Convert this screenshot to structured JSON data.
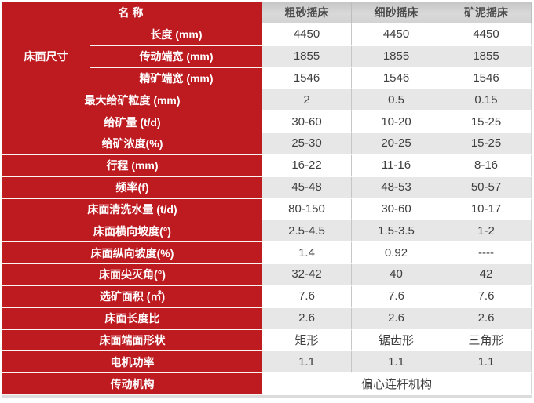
{
  "colors": {
    "accent_red": "#be1b21",
    "alt_row_gray": "#e7e7e7",
    "header_gray": "#d3d3d3",
    "data_text": "#3f3f3f"
  },
  "table": {
    "name_header": "名称",
    "machine_columns": [
      "粗砂摇床",
      "细砂摇床",
      "矿泥摇床"
    ],
    "bed_size": {
      "group_label": "床面尺寸",
      "rows": [
        {
          "label": "长度 (mm)",
          "values": [
            "4450",
            "4450",
            "4450"
          ]
        },
        {
          "label": "传动端宽 (mm)",
          "values": [
            "1855",
            "1855",
            "1855"
          ]
        },
        {
          "label": "精矿端宽 (mm)",
          "values": [
            "1546",
            "1546",
            "1546"
          ]
        }
      ]
    },
    "spec_rows": [
      {
        "label": "最大给矿粒度 (mm)",
        "values": [
          "2",
          "0.5",
          "0.15"
        ]
      },
      {
        "label": "给矿量 (t/d)",
        "values": [
          "30-60",
          "10-20",
          "15-25"
        ]
      },
      {
        "label": "给矿浓度(%)",
        "values": [
          "25-30",
          "20-25",
          "15-25"
        ]
      },
      {
        "label": "行程 (mm)",
        "values": [
          "16-22",
          "11-16",
          "8-16"
        ]
      },
      {
        "label": "频率(f)",
        "values": [
          "45-48",
          "48-53",
          "50-57"
        ]
      },
      {
        "label": "床面清洗水量 (t/d)",
        "values": [
          "80-150",
          "30-60",
          "10-17"
        ]
      },
      {
        "label": "床面横向坡度(°)",
        "values": [
          "2.5-4.5",
          "1.5-3.5",
          "1-2"
        ]
      },
      {
        "label": "床面纵向坡度(%)",
        "values": [
          "1.4",
          "0.92",
          "----"
        ]
      },
      {
        "label": "床面尖灭角(°)",
        "values": [
          "32-42",
          "40",
          "42"
        ]
      },
      {
        "label": "选矿面积 (㎡)",
        "values": [
          "7.6",
          "7.6",
          "7.6"
        ]
      },
      {
        "label": "床面长度比",
        "values": [
          "2.6",
          "2.6",
          "2.6"
        ]
      },
      {
        "label": "床面端面形状",
        "values": [
          "矩形",
          "锯齿形",
          "三角形"
        ]
      },
      {
        "label": "电机功率",
        "values": [
          "1.1",
          "1.1",
          "1.1"
        ]
      }
    ],
    "transmission": {
      "label": "传动机构",
      "value": "偏心连杆机构"
    }
  },
  "chart_data": {
    "type": "table",
    "title": "摇床技术参数表",
    "columns": [
      "名称",
      "粗砂摇床",
      "细砂摇床",
      "矿泥摇床"
    ],
    "rows": [
      [
        "床面尺寸 长度 (mm)",
        "4450",
        "4450",
        "4450"
      ],
      [
        "床面尺寸 传动端宽 (mm)",
        "1855",
        "1855",
        "1855"
      ],
      [
        "床面尺寸 精矿端宽 (mm)",
        "1546",
        "1546",
        "1546"
      ],
      [
        "最大给矿粒度 (mm)",
        "2",
        "0.5",
        "0.15"
      ],
      [
        "给矿量 (t/d)",
        "30-60",
        "10-20",
        "15-25"
      ],
      [
        "给矿浓度(%)",
        "25-30",
        "20-25",
        "15-25"
      ],
      [
        "行程 (mm)",
        "16-22",
        "11-16",
        "8-16"
      ],
      [
        "频率(f)",
        "45-48",
        "48-53",
        "50-57"
      ],
      [
        "床面清洗水量 (t/d)",
        "80-150",
        "30-60",
        "10-17"
      ],
      [
        "床面横向坡度(°)",
        "2.5-4.5",
        "1.5-3.5",
        "1-2"
      ],
      [
        "床面纵向坡度(%)",
        "1.4",
        "0.92",
        "----"
      ],
      [
        "床面尖灭角(°)",
        "32-42",
        "40",
        "42"
      ],
      [
        "选矿面积 (㎡)",
        "7.6",
        "7.6",
        "7.6"
      ],
      [
        "床面长度比",
        "2.6",
        "2.6",
        "2.6"
      ],
      [
        "床面端面形状",
        "矩形",
        "锯齿形",
        "三角形"
      ],
      [
        "电机功率",
        "1.1",
        "1.1",
        "1.1"
      ],
      [
        "传动机构",
        "偏心连杆机构",
        "偏心连杆机构",
        "偏心连杆机构"
      ]
    ]
  }
}
